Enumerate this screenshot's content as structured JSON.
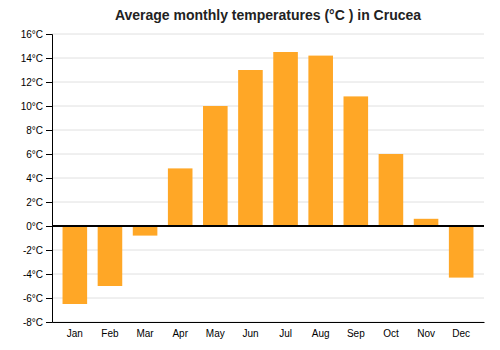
{
  "chart_data": {
    "type": "bar",
    "title": "Average monthly temperatures (°C ) in Crucea",
    "categories": [
      "Jan",
      "Feb",
      "Mar",
      "Apr",
      "May",
      "Jun",
      "Jul",
      "Aug",
      "Sep",
      "Oct",
      "Nov",
      "Dec"
    ],
    "values": [
      -6.5,
      -5.0,
      -0.8,
      4.8,
      10.0,
      13.0,
      14.5,
      14.2,
      10.8,
      6.0,
      0.6,
      -4.3
    ],
    "color": "#FFA726",
    "ylim": [
      -8,
      16
    ],
    "yticks": [
      {
        "value": -8,
        "label": "-8°C"
      },
      {
        "value": -6,
        "label": "-6°C"
      },
      {
        "value": -4,
        "label": "-4°C"
      },
      {
        "value": -2,
        "label": "-2°C"
      },
      {
        "value": 0,
        "label": "0°C"
      },
      {
        "value": 2,
        "label": "2°C"
      },
      {
        "value": 4,
        "label": "4°C"
      },
      {
        "value": 6,
        "label": "6°C"
      },
      {
        "value": 8,
        "label": "8°C"
      },
      {
        "value": 10,
        "label": "10°C"
      },
      {
        "value": 12,
        "label": "12°C"
      },
      {
        "value": 14,
        "label": "14°C"
      },
      {
        "value": 16,
        "label": "16°C"
      }
    ],
    "grid": true
  }
}
